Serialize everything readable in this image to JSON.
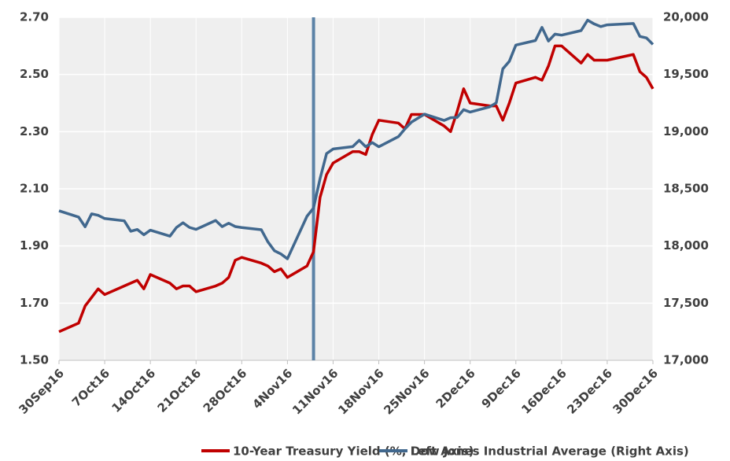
{
  "chart_data": {
    "type": "line",
    "x": [
      "2016-09-30",
      "2016-10-03",
      "2016-10-04",
      "2016-10-05",
      "2016-10-06",
      "2016-10-07",
      "2016-10-10",
      "2016-10-11",
      "2016-10-12",
      "2016-10-13",
      "2016-10-14",
      "2016-10-17",
      "2016-10-18",
      "2016-10-19",
      "2016-10-20",
      "2016-10-21",
      "2016-10-24",
      "2016-10-25",
      "2016-10-26",
      "2016-10-27",
      "2016-10-28",
      "2016-10-31",
      "2016-11-01",
      "2016-11-02",
      "2016-11-03",
      "2016-11-04",
      "2016-11-07",
      "2016-11-08",
      "2016-11-09",
      "2016-11-10",
      "2016-11-11",
      "2016-11-14",
      "2016-11-15",
      "2016-11-16",
      "2016-11-17",
      "2016-11-18",
      "2016-11-21",
      "2016-11-22",
      "2016-11-23",
      "2016-11-25",
      "2016-11-28",
      "2016-11-29",
      "2016-11-30",
      "2016-12-01",
      "2016-12-02",
      "2016-12-05",
      "2016-12-06",
      "2016-12-07",
      "2016-12-08",
      "2016-12-09",
      "2016-12-12",
      "2016-12-13",
      "2016-12-14",
      "2016-12-15",
      "2016-12-16",
      "2016-12-19",
      "2016-12-20",
      "2016-12-21",
      "2016-12-22",
      "2016-12-23",
      "2016-12-27",
      "2016-12-28",
      "2016-12-29",
      "2016-12-30"
    ],
    "series": [
      {
        "name": "10-Year Treasury Yield (%, Left Axis)",
        "color": "#c00000",
        "axis": "y",
        "values": [
          1.6,
          1.63,
          1.69,
          1.72,
          1.75,
          1.73,
          1.76,
          1.77,
          1.78,
          1.75,
          1.8,
          1.77,
          1.75,
          1.76,
          1.76,
          1.74,
          1.76,
          1.77,
          1.79,
          1.85,
          1.86,
          1.84,
          1.83,
          1.81,
          1.82,
          1.79,
          1.83,
          1.88,
          2.07,
          2.15,
          2.19,
          2.23,
          2.23,
          2.22,
          2.29,
          2.34,
          2.33,
          2.31,
          2.36,
          2.36,
          2.32,
          2.3,
          2.37,
          2.45,
          2.4,
          2.39,
          2.39,
          2.34,
          2.4,
          2.47,
          2.49,
          2.48,
          2.53,
          2.6,
          2.6,
          2.54,
          2.57,
          2.55,
          2.55,
          2.55,
          2.57,
          2.51,
          2.49,
          2.45
        ]
      },
      {
        "name": "Dow Jones Industrial Average (Right Axis)",
        "color": "#41688e",
        "axis": "y2",
        "values": [
          18308,
          18253,
          18168,
          18281,
          18268,
          18240,
          18220,
          18129,
          18144,
          18098,
          18138,
          18086,
          18162,
          18203,
          18162,
          18145,
          18223,
          18169,
          18199,
          18170,
          18161,
          18142,
          18037,
          17959,
          17930,
          17888,
          18260,
          18332,
          18589,
          18808,
          18848,
          18869,
          18924,
          18868,
          18904,
          18868,
          18956,
          19024,
          19083,
          19153,
          19098,
          19122,
          19124,
          19192,
          19171,
          19217,
          19252,
          19549,
          19615,
          19757,
          19797,
          19912,
          19792,
          19853,
          19844,
          19884,
          19975,
          19942,
          19919,
          19934,
          19946,
          19833,
          19820,
          19763
        ]
      }
    ],
    "xlim": [
      "2016-09-30",
      "2016-12-30"
    ],
    "xticks": [
      {
        "value": "2016-09-30",
        "label": "30Sep16"
      },
      {
        "value": "2016-10-07",
        "label": "7Oct16"
      },
      {
        "value": "2016-10-14",
        "label": "14Oct16"
      },
      {
        "value": "2016-10-21",
        "label": "21Oct16"
      },
      {
        "value": "2016-10-28",
        "label": "28Oct16"
      },
      {
        "value": "2016-11-04",
        "label": "4Nov16"
      },
      {
        "value": "2016-11-11",
        "label": "11Nov16"
      },
      {
        "value": "2016-11-18",
        "label": "18Nov16"
      },
      {
        "value": "2016-11-25",
        "label": "25Nov16"
      },
      {
        "value": "2016-12-02",
        "label": "2Dec16"
      },
      {
        "value": "2016-12-09",
        "label": "9Dec16"
      },
      {
        "value": "2016-12-16",
        "label": "16Dec16"
      },
      {
        "value": "2016-12-23",
        "label": "23Dec16"
      },
      {
        "value": "2016-12-30",
        "label": "30Dec16"
      }
    ],
    "ylim": [
      1.5,
      2.7
    ],
    "yticks": [
      {
        "value": 1.5,
        "label": "1.50"
      },
      {
        "value": 1.7,
        "label": "1.70"
      },
      {
        "value": 1.9,
        "label": "1.90"
      },
      {
        "value": 2.1,
        "label": "2.10"
      },
      {
        "value": 2.3,
        "label": "2.30"
      },
      {
        "value": 2.5,
        "label": "2.50"
      },
      {
        "value": 2.7,
        "label": "2.70"
      }
    ],
    "y2lim": [
      17000,
      20000
    ],
    "y2ticks": [
      {
        "value": 17000,
        "label": "17,000"
      },
      {
        "value": 17500,
        "label": "17,500"
      },
      {
        "value": 18000,
        "label": "18,000"
      },
      {
        "value": 18500,
        "label": "18,500"
      },
      {
        "value": 19000,
        "label": "19,000"
      },
      {
        "value": 19500,
        "label": "19,500"
      },
      {
        "value": 20000,
        "label": "20,000"
      }
    ],
    "vertical_line": {
      "x": "2016-11-08",
      "color": "#5b82a6"
    },
    "grid": true,
    "legend": "bottom"
  }
}
